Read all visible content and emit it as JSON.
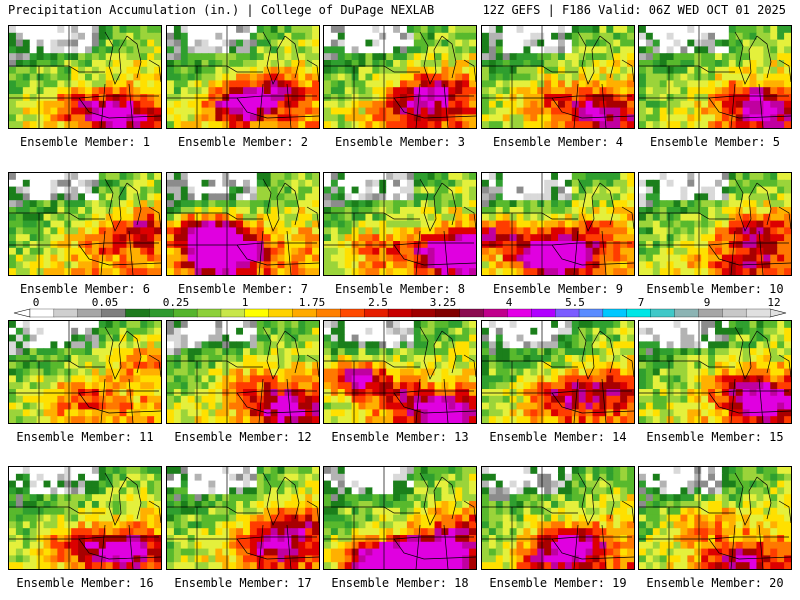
{
  "header": {
    "title": "Precipitation Accumulation (in.) | College of DuPage NEXLAB",
    "run_info": "12Z GEFS | F186 Valid: 06Z WED OCT 01 2025"
  },
  "caption_prefix": "Ensemble Member:",
  "members": [
    {
      "label": "Ensemble Member: 1",
      "hot": [
        [
          0.45,
          0.78,
          0.5
        ],
        [
          0.75,
          0.88,
          0.9
        ]
      ]
    },
    {
      "label": "Ensemble Member: 2",
      "hot": [
        [
          0.48,
          0.78,
          1.0
        ],
        [
          0.7,
          0.62,
          0.6
        ]
      ]
    },
    {
      "label": "Ensemble Member: 3",
      "hot": [
        [
          0.72,
          0.65,
          0.9
        ],
        [
          0.55,
          0.85,
          0.5
        ]
      ]
    },
    {
      "label": "Ensemble Member: 4",
      "hot": [
        [
          0.78,
          0.85,
          0.8
        ],
        [
          0.45,
          0.7,
          0.4
        ]
      ]
    },
    {
      "label": "Ensemble Member: 5",
      "hot": [
        [
          0.7,
          0.7,
          0.5
        ],
        [
          0.85,
          0.85,
          0.6
        ]
      ]
    },
    {
      "label": "Ensemble Member: 6",
      "hot": [
        [
          0.88,
          0.55,
          0.6
        ],
        [
          0.6,
          0.72,
          0.3
        ]
      ]
    },
    {
      "label": "Ensemble Member: 7",
      "hot": [
        [
          0.25,
          0.6,
          1.4
        ],
        [
          0.45,
          0.75,
          1.0
        ],
        [
          0.3,
          0.88,
          0.8
        ]
      ]
    },
    {
      "label": "Ensemble Member: 8",
      "hot": [
        [
          0.88,
          0.78,
          1.6
        ],
        [
          0.35,
          0.72,
          0.5
        ]
      ]
    },
    {
      "label": "Ensemble Member: 9",
      "hot": [
        [
          0.48,
          0.82,
          1.6
        ],
        [
          0.08,
          0.6,
          1.0
        ],
        [
          0.7,
          0.6,
          0.5
        ]
      ]
    },
    {
      "label": "Ensemble Member: 10",
      "hot": [
        [
          0.75,
          0.55,
          0.6
        ],
        [
          0.7,
          0.85,
          0.6
        ]
      ]
    },
    {
      "label": "Ensemble Member: 11",
      "hot": [
        [
          0.45,
          0.75,
          0.5
        ],
        [
          0.9,
          0.4,
          0.4
        ]
      ]
    },
    {
      "label": "Ensemble Member: 12",
      "hot": [
        [
          0.78,
          0.85,
          0.9
        ],
        [
          0.55,
          0.6,
          0.4
        ]
      ]
    },
    {
      "label": "Ensemble Member: 13",
      "hot": [
        [
          0.2,
          0.55,
          1.1
        ],
        [
          0.8,
          0.9,
          1.0
        ],
        [
          0.5,
          0.75,
          0.5
        ]
      ]
    },
    {
      "label": "Ensemble Member: 14",
      "hot": [
        [
          0.55,
          0.75,
          0.8
        ],
        [
          0.85,
          0.65,
          0.5
        ]
      ]
    },
    {
      "label": "Ensemble Member: 15",
      "hot": [
        [
          0.85,
          0.8,
          1.0
        ],
        [
          0.65,
          0.6,
          0.5
        ]
      ]
    },
    {
      "label": "Ensemble Member: 16",
      "hot": [
        [
          0.75,
          0.8,
          1.0
        ],
        [
          0.4,
          0.75,
          0.5
        ]
      ]
    },
    {
      "label": "Ensemble Member: 17",
      "hot": [
        [
          0.7,
          0.75,
          0.9
        ],
        [
          0.85,
          0.5,
          0.5
        ]
      ]
    },
    {
      "label": "Ensemble Member: 18",
      "hot": [
        [
          0.72,
          0.88,
          1.6
        ],
        [
          0.38,
          0.92,
          1.4
        ],
        [
          0.9,
          0.6,
          0.5
        ]
      ]
    },
    {
      "label": "Ensemble Member: 19",
      "hot": [
        [
          0.6,
          0.75,
          0.9
        ],
        [
          0.45,
          0.9,
          0.6
        ]
      ]
    },
    {
      "label": "Ensemble Member: 20",
      "hot": [
        [
          0.65,
          0.9,
          0.7
        ],
        [
          0.4,
          0.55,
          0.5
        ]
      ]
    }
  ],
  "colorbar": {
    "labels": [
      "0",
      "0.05",
      "0.25",
      "1",
      "1.75",
      "2.5",
      "3.25",
      "4",
      "5.5",
      "7",
      "9",
      "12"
    ],
    "colors": [
      "#ffffff",
      "#cfcfcf",
      "#a6a6a6",
      "#7f7f7f",
      "#1e7a1e",
      "#2f9a2f",
      "#55b52c",
      "#8dd03a",
      "#c8e64a",
      "#ffff00",
      "#ffd200",
      "#ffaa00",
      "#ff7f00",
      "#ff4a00",
      "#e61e00",
      "#c80000",
      "#a00000",
      "#800000",
      "#8b0a50",
      "#c0008c",
      "#e300e6",
      "#b000ff",
      "#7a5cff",
      "#5a8cff",
      "#00c8ff",
      "#00e6e6",
      "#40c8c8",
      "#8cb4b4",
      "#a6a6a6",
      "#c8c8c8",
      "#e0e0e0"
    ]
  },
  "palette": {
    "dry": [
      "#ffffff",
      "#d9d9d9",
      "#b3b3b3",
      "#8c8c8c"
    ],
    "wet": [
      "#1b7f1b",
      "#2f9f2f",
      "#58b92d",
      "#9bd43a",
      "#e4f03c",
      "#ffe000",
      "#ffb000",
      "#ff7800",
      "#ff3c00",
      "#dc0000",
      "#a80000",
      "#c000a0",
      "#e000e0"
    ]
  }
}
